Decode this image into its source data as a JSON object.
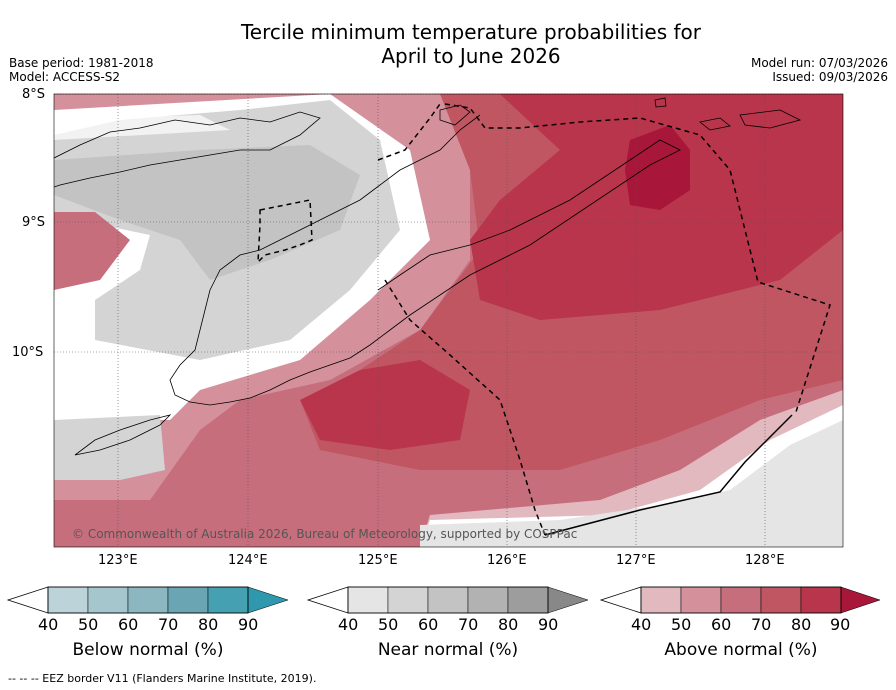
{
  "title": {
    "line1": "Tercile minimum temperature probabilities for",
    "line2": "April to June 2026"
  },
  "meta_left": {
    "base_period": "Base period: 1981-2018",
    "model": "Model: ACCESS-S2"
  },
  "meta_right": {
    "model_run": "Model run: 07/03/2026",
    "issued": "Issued: 09/03/2026"
  },
  "map": {
    "lat_labels": [
      "8°S",
      "9°S",
      "10°S"
    ],
    "lon_labels": [
      "123°E",
      "124°E",
      "125°E",
      "126°E",
      "127°E",
      "128°E"
    ],
    "copyright": "© Commonwealth of Australia 2026, Bureau of Meteorology, supported by COSPPac"
  },
  "colorbars": [
    {
      "label": "Below normal (%)",
      "ticks": [
        "40",
        "50",
        "60",
        "70",
        "80",
        "90"
      ],
      "colors": [
        "#bcd3da",
        "#a5c6cd",
        "#8cb7c1",
        "#6aa5b3",
        "#45a0b1",
        "#2f98ac"
      ]
    },
    {
      "label": "Near normal (%)",
      "ticks": [
        "40",
        "50",
        "60",
        "70",
        "80",
        "90"
      ],
      "colors": [
        "#e5e5e5",
        "#d4d4d4",
        "#c3c3c3",
        "#b2b2b2",
        "#9d9d9d",
        "#888888"
      ]
    },
    {
      "label": "Above normal (%)",
      "ticks": [
        "40",
        "50",
        "60",
        "70",
        "80",
        "90"
      ],
      "colors": [
        "#e2b9bf",
        "#d4919c",
        "#c76e7d",
        "#c05662",
        "#b8354b",
        "#a8163a"
      ]
    }
  ],
  "footer": "--  --  -- EEZ border V11 (Flanders Marine Institute, 2019)."
}
